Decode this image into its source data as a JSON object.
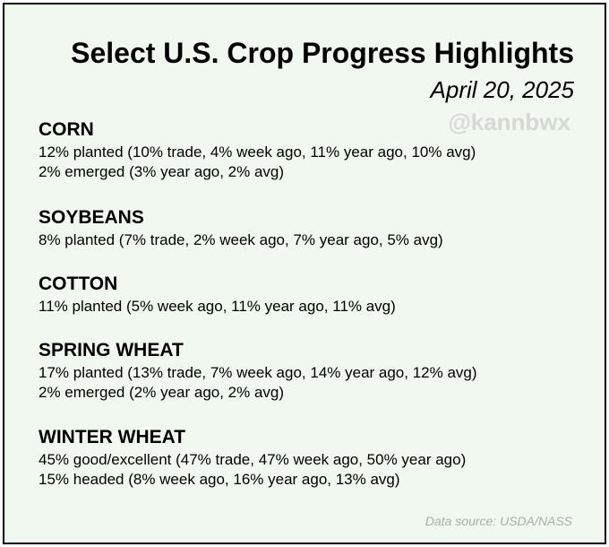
{
  "title": "Select U.S. Crop Progress Highlights",
  "date": "April 20, 2025",
  "watermark": "@kannbwx",
  "sections": [
    {
      "name": "CORN",
      "lines": [
        "12% planted (10% trade, 4% week ago, 11% year ago, 10% avg)",
        "2% emerged (3% year ago, 2% avg)"
      ]
    },
    {
      "name": "SOYBEANS",
      "lines": [
        "8% planted (7% trade, 2% week ago, 7% year ago, 5% avg)"
      ]
    },
    {
      "name": "COTTON",
      "lines": [
        "11% planted (5% week ago, 11% year ago, 11% avg)"
      ]
    },
    {
      "name": "SPRING WHEAT",
      "lines": [
        "17% planted (13% trade, 7% week ago, 14% year ago, 12% avg)",
        "2% emerged (2% year ago, 2% avg)"
      ]
    },
    {
      "name": "WINTER WHEAT",
      "lines": [
        "45% good/excellent (47% trade, 47% week ago, 50% year ago)",
        "15% headed (8% week ago, 16% year ago, 13% avg)"
      ]
    }
  ],
  "source": "Data source: USDA/NASS",
  "colors": {
    "background": "#f1f8ef",
    "border": "#000000",
    "text": "#000000",
    "watermark": "#d4d9d4",
    "source": "#a9aea9"
  }
}
